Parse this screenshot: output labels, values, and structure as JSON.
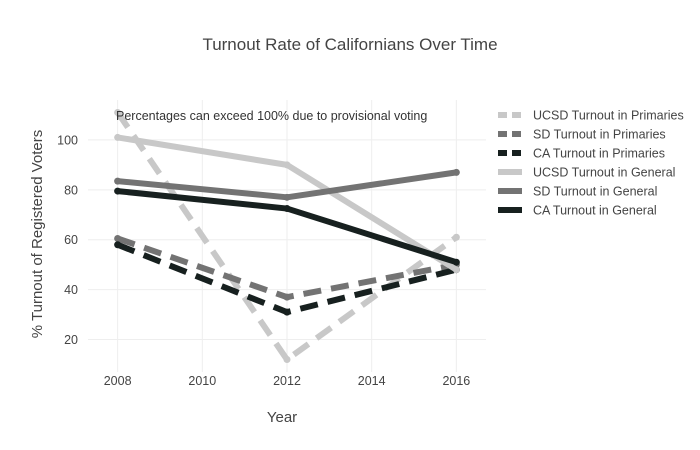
{
  "chart_data": {
    "type": "line",
    "title": "Turnout Rate of Californians Over Time",
    "xlabel": "Year",
    "ylabel": "% Turnout of Registered Voters",
    "annotation": "Percentages can exceed 100% due to provisional voting",
    "xlim": [
      2007.3,
      2016.7
    ],
    "ylim": [
      7,
      116
    ],
    "x_ticks": [
      2008,
      2010,
      2012,
      2014,
      2016
    ],
    "y_ticks": [
      20,
      40,
      60,
      80,
      100
    ],
    "grid": true,
    "legend_position": "right",
    "x": [
      2008,
      2012,
      2016
    ],
    "series": [
      {
        "name": "UCSD Turnout in Primaries",
        "values": [
          111,
          12,
          61
        ],
        "color": "#c8c8c8",
        "dash": true
      },
      {
        "name": "SD Turnout in Primaries",
        "values": [
          60.5,
          37,
          50
        ],
        "color": "#737373",
        "dash": true
      },
      {
        "name": "CA Turnout in Primaries",
        "values": [
          58,
          31,
          48
        ],
        "color": "#17201f",
        "dash": true
      },
      {
        "name": "UCSD Turnout in General",
        "values": [
          101,
          90,
          48
        ],
        "color": "#c8c8c8",
        "dash": false
      },
      {
        "name": "SD Turnout in General",
        "values": [
          83.5,
          77,
          87
        ],
        "color": "#737373",
        "dash": false
      },
      {
        "name": "CA Turnout in General",
        "values": [
          79.5,
          72.5,
          51
        ],
        "color": "#17201f",
        "dash": false
      }
    ]
  }
}
